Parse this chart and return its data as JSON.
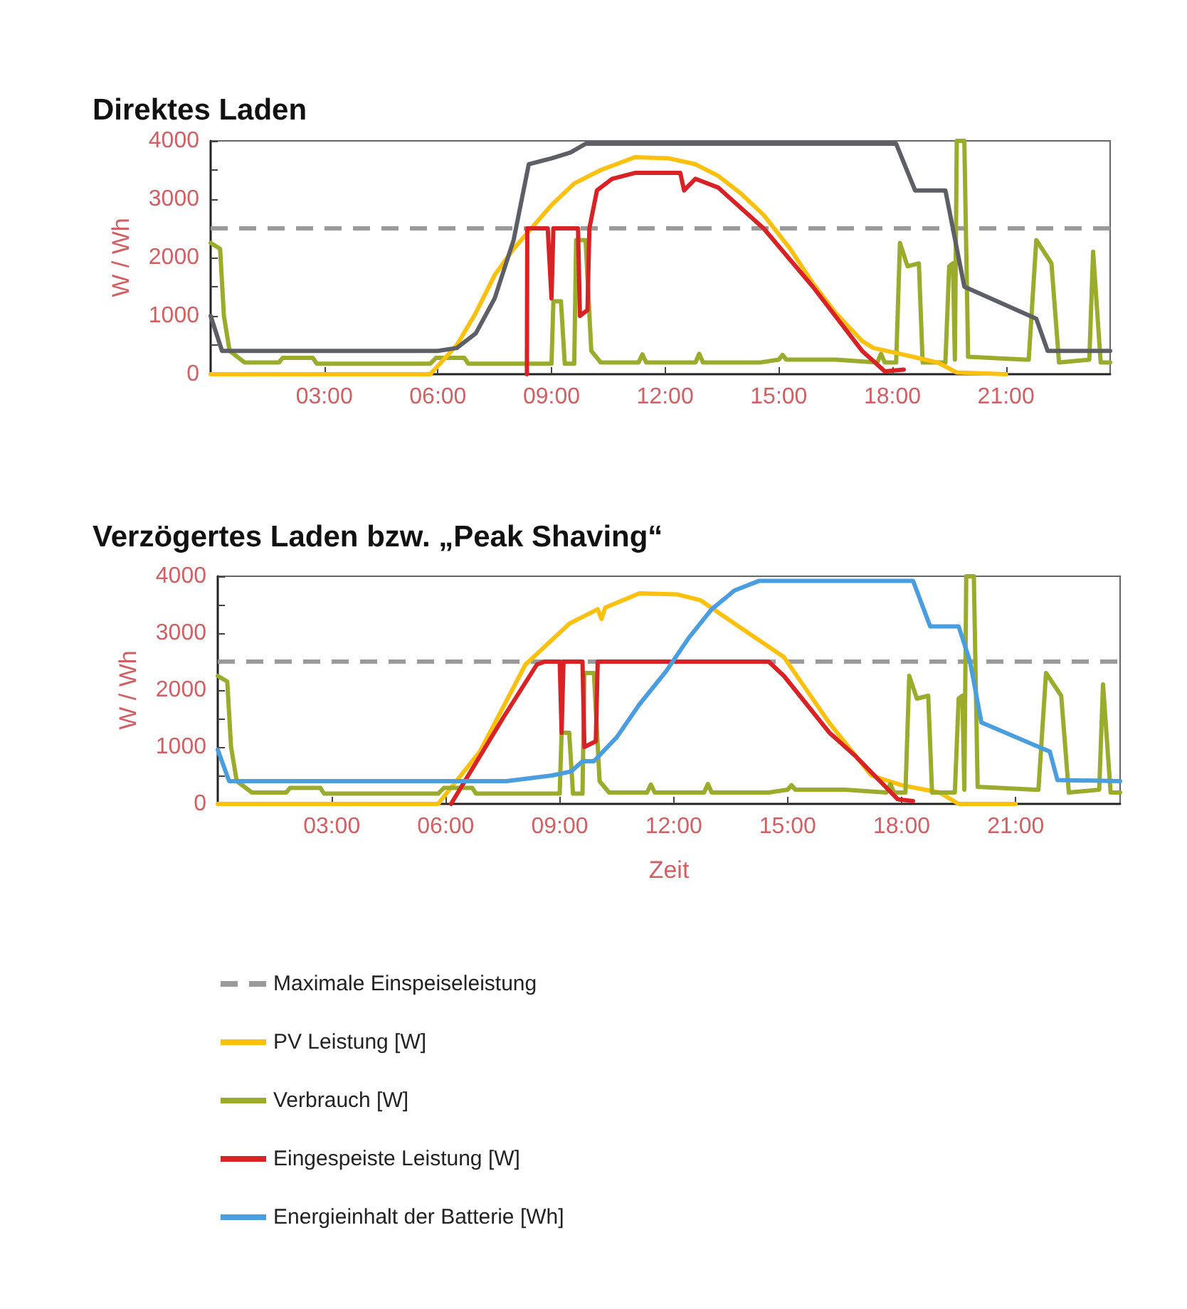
{
  "chart_data": [
    {
      "type": "line",
      "title": "Direktes Laden",
      "ylabel": "W / Wh",
      "xlim": [
        0,
        23.75
      ],
      "ylim": [
        0,
        4000
      ],
      "xticks": [
        {
          "value": 3,
          "label": "03:00"
        },
        {
          "value": 6,
          "label": "06:00"
        },
        {
          "value": 9,
          "label": "09:00"
        },
        {
          "value": 12,
          "label": "12:00"
        },
        {
          "value": 15,
          "label": "15:00"
        },
        {
          "value": 18,
          "label": "18:00"
        },
        {
          "value": 21,
          "label": "21:00"
        }
      ],
      "yticks": [
        0,
        {
          "value": 500,
          "label": null
        },
        1000,
        {
          "value": 1500,
          "label": null
        },
        2000,
        {
          "value": 2500,
          "label": null
        },
        3000,
        {
          "value": 3500,
          "label": null
        },
        4000
      ],
      "grid": false,
      "legend": false,
      "marker": "none",
      "line_style": "solid",
      "ref_lines": [
        {
          "axis": "y",
          "value": 2500,
          "color": "#9a9a9a",
          "line_style": "dashed"
        }
      ],
      "series": [
        {
          "color": "#9bab2b",
          "x": [
            0,
            0.25,
            0.35,
            0.5,
            0.9,
            1.8,
            1.9,
            2.7,
            2.8,
            5.8,
            5.95,
            6.7,
            6.8,
            9.0,
            9.05,
            9.25,
            9.35,
            9.6,
            9.65,
            9.9,
            10.05,
            10.3,
            11.3,
            11.4,
            11.5,
            12.8,
            12.9,
            13.0,
            14.5,
            15.0,
            15.1,
            15.2,
            16.5,
            17.6,
            17.7,
            17.8,
            18.1,
            18.2,
            18.4,
            18.7,
            18.8,
            19.4,
            19.5,
            19.6,
            19.65,
            19.7,
            19.9,
            20.0,
            21.5,
            21.6,
            21.8,
            22.2,
            22.4,
            23.2,
            23.3,
            23.5,
            23.75
          ],
          "values": [
            2250,
            2150,
            1000,
            400,
            200,
            200,
            280,
            280,
            180,
            180,
            280,
            280,
            180,
            180,
            1250,
            1250,
            180,
            180,
            2300,
            2300,
            400,
            200,
            200,
            340,
            200,
            200,
            350,
            200,
            200,
            250,
            330,
            250,
            250,
            200,
            350,
            200,
            200,
            2250,
            1850,
            1900,
            200,
            200,
            1850,
            1900,
            250,
            4000,
            4000,
            300,
            250,
            250,
            2300,
            1900,
            200,
            250,
            2100,
            200,
            200
          ]
        },
        {
          "color": "#fcc00e",
          "x": [
            0,
            5.8,
            6.5,
            7.0,
            7.5,
            8.0,
            8.4,
            9.0,
            9.6,
            10.3,
            11.2,
            12.1,
            12.8,
            13.4,
            14.0,
            14.6,
            15.3,
            15.9,
            16.5,
            17.2,
            17.5,
            18.4,
            19.2,
            19.7,
            21.0
          ],
          "values": [
            0,
            0,
            500,
            1050,
            1700,
            2150,
            2450,
            2900,
            3270,
            3500,
            3720,
            3700,
            3600,
            3400,
            3100,
            2730,
            2150,
            1560,
            1050,
            570,
            450,
            320,
            200,
            30,
            0
          ]
        },
        {
          "color": "#d92226",
          "x": [
            8.35,
            8.36,
            8.9,
            9.0,
            9.05,
            9.1,
            9.7,
            9.75,
            9.95,
            10.0,
            10.2,
            10.6,
            11.2,
            12.4,
            12.5,
            12.8,
            13.4,
            14.6,
            15.9,
            17.2,
            17.8,
            18.3
          ],
          "values": [
            0,
            2500,
            2500,
            1300,
            2500,
            2500,
            2500,
            1000,
            1100,
            2500,
            3150,
            3350,
            3450,
            3450,
            3150,
            3350,
            3200,
            2500,
            1500,
            400,
            50,
            80
          ]
        },
        {
          "color": "#5c6066",
          "x": [
            0,
            0.3,
            6.0,
            6.5,
            7.0,
            7.5,
            8.0,
            8.4,
            9.0,
            9.5,
            9.9,
            18.1,
            18.6,
            19.4,
            19.9,
            21.8,
            22.1,
            23.75
          ],
          "values": [
            1000,
            400,
            400,
            450,
            700,
            1300,
            2300,
            3600,
            3700,
            3800,
            3950,
            3950,
            3150,
            3150,
            1500,
            950,
            400,
            400
          ]
        }
      ]
    },
    {
      "type": "line",
      "title": "Verzögertes Laden bzw. „Peak Shaving“",
      "xlabel": "Zeit",
      "ylabel": "W / Wh",
      "xlim": [
        0,
        23.75
      ],
      "ylim": [
        0,
        4000
      ],
      "xticks": [
        {
          "value": 3,
          "label": "03:00"
        },
        {
          "value": 6,
          "label": "06:00"
        },
        {
          "value": 9,
          "label": "09:00"
        },
        {
          "value": 12,
          "label": "12:00"
        },
        {
          "value": 15,
          "label": "15:00"
        },
        {
          "value": 18,
          "label": "18:00"
        },
        {
          "value": 21,
          "label": "21:00"
        }
      ],
      "yticks": [
        0,
        {
          "value": 500,
          "label": null
        },
        1000,
        {
          "value": 1500,
          "label": null
        },
        2000,
        {
          "value": 2500,
          "label": null
        },
        3000,
        {
          "value": 3500,
          "label": null
        },
        4000
      ],
      "grid": false,
      "legend": "bottom",
      "marker": "none",
      "line_style": "solid",
      "ref_lines": [
        {
          "axis": "y",
          "value": 2500,
          "label": "Maximale Einspeiseleistung",
          "color": "#9a9a9a",
          "line_style": "dashed"
        }
      ],
      "series": [
        {
          "name": "PV Leistung [W]",
          "color": "#fcc00e",
          "x": [
            0,
            5.8,
            6.9,
            8.1,
            9.26,
            10.0,
            10.1,
            10.2,
            11.1,
            12.1,
            12.7,
            13.6,
            14.9,
            16.1,
            17.2,
            18.0,
            19.0,
            19.5,
            21.0
          ],
          "values": [
            0,
            0,
            920,
            2450,
            3170,
            3420,
            3250,
            3450,
            3700,
            3680,
            3580,
            3170,
            2580,
            1420,
            500,
            330,
            200,
            0,
            0
          ]
        },
        {
          "name": "Verbrauch [W]",
          "color": "#9bab2b",
          "x": [
            0,
            0.25,
            0.35,
            0.5,
            0.9,
            1.8,
            1.9,
            2.7,
            2.8,
            5.8,
            5.95,
            6.7,
            6.8,
            9.0,
            9.05,
            9.25,
            9.35,
            9.6,
            9.65,
            9.9,
            10.05,
            10.3,
            11.3,
            11.4,
            11.5,
            12.8,
            12.9,
            13.0,
            14.5,
            15.0,
            15.1,
            15.2,
            16.5,
            17.6,
            17.7,
            17.8,
            18.1,
            18.2,
            18.4,
            18.7,
            18.8,
            19.4,
            19.5,
            19.6,
            19.65,
            19.7,
            19.9,
            20.0,
            21.5,
            21.6,
            21.8,
            22.2,
            22.4,
            23.2,
            23.3,
            23.5,
            23.75
          ],
          "values": [
            2250,
            2150,
            1000,
            400,
            200,
            200,
            280,
            280,
            180,
            180,
            280,
            280,
            180,
            180,
            1250,
            1250,
            180,
            180,
            2300,
            2300,
            400,
            200,
            200,
            340,
            200,
            200,
            350,
            200,
            200,
            250,
            330,
            250,
            250,
            200,
            350,
            200,
            200,
            2250,
            1850,
            1900,
            200,
            200,
            1850,
            1900,
            250,
            4000,
            4000,
            300,
            250,
            250,
            2300,
            1900,
            200,
            250,
            2100,
            200,
            200
          ]
        },
        {
          "name": "Eingespeiste Leistung [W]",
          "color": "#d92226",
          "x": [
            6.14,
            7.5,
            8.4,
            8.6,
            9.0,
            9.05,
            9.1,
            9.15,
            9.6,
            9.65,
            9.95,
            10.0,
            14.5,
            14.9,
            15.5,
            16.1,
            16.8,
            17.4,
            17.9,
            18.3
          ],
          "values": [
            0,
            1500,
            2450,
            2500,
            2500,
            1250,
            2500,
            2500,
            2500,
            1000,
            1100,
            2500,
            2500,
            2250,
            1750,
            1250,
            830,
            420,
            80,
            50
          ]
        },
        {
          "name": "Energieinhalt der Batterie [Wh]",
          "color": "#4a9ee0",
          "x": [
            0,
            0.3,
            7.6,
            8.8,
            9.3,
            9.6,
            9.9,
            10.5,
            11.1,
            11.8,
            12.4,
            13.0,
            13.6,
            14.25,
            18.3,
            18.75,
            19.5,
            19.8,
            20.1,
            21.9,
            22.1,
            23.75
          ],
          "values": [
            950,
            400,
            400,
            500,
            570,
            750,
            750,
            1170,
            1750,
            2330,
            2920,
            3420,
            3750,
            3920,
            3920,
            3120,
            3120,
            2500,
            1430,
            920,
            420,
            400
          ]
        }
      ]
    }
  ]
}
